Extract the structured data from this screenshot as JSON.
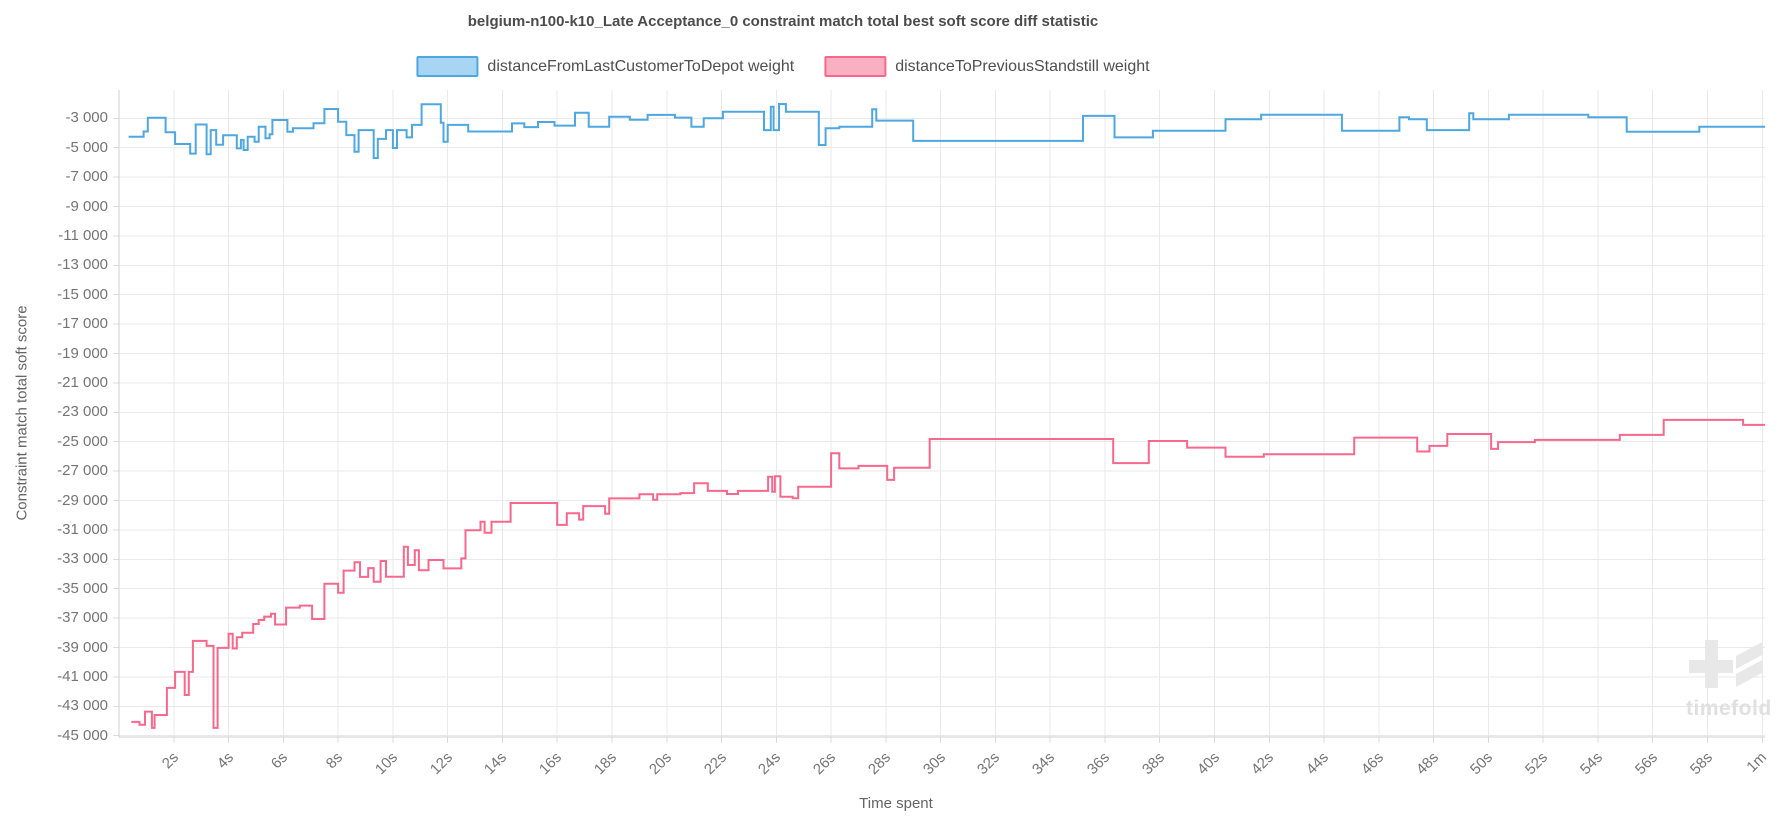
{
  "title": "belgium-n100-k10_Late Acceptance_0 constraint match total best soft score diff statistic",
  "watermark": {
    "text": "timefold"
  },
  "chart_data": {
    "type": "line",
    "line_style": "step-after",
    "title": "belgium-n100-k10_Late Acceptance_0 constraint match total best soft score diff statistic",
    "xlabel": "Time spent",
    "ylabel": "Constraint match total soft score",
    "grid": true,
    "legend_position": "top",
    "xlim": [
      0,
      60.1
    ],
    "ylim": [
      -45090,
      -1075
    ],
    "colors": {
      "grid": "#e9e9e9",
      "axis": "#cfcfcf",
      "tick_stub": "#dcdcdc",
      "blue_line": "#4da7e0",
      "blue_fill": "#a9d5f5",
      "pink_line": "#f7688c",
      "pink_fill": "#f9b0c3",
      "text": "#757575",
      "watermark": "#e8e8e8"
    },
    "x_ticks": [
      {
        "v": 2,
        "label": "2s"
      },
      {
        "v": 4,
        "label": "4s"
      },
      {
        "v": 6,
        "label": "6s"
      },
      {
        "v": 8,
        "label": "8s"
      },
      {
        "v": 10,
        "label": "10s"
      },
      {
        "v": 12,
        "label": "12s"
      },
      {
        "v": 14,
        "label": "14s"
      },
      {
        "v": 16,
        "label": "16s"
      },
      {
        "v": 18,
        "label": "18s"
      },
      {
        "v": 20,
        "label": "20s"
      },
      {
        "v": 22,
        "label": "22s"
      },
      {
        "v": 24,
        "label": "24s"
      },
      {
        "v": 26,
        "label": "26s"
      },
      {
        "v": 28,
        "label": "28s"
      },
      {
        "v": 30,
        "label": "30s"
      },
      {
        "v": 32,
        "label": "32s"
      },
      {
        "v": 34,
        "label": "34s"
      },
      {
        "v": 36,
        "label": "36s"
      },
      {
        "v": 38,
        "label": "38s"
      },
      {
        "v": 40,
        "label": "40s"
      },
      {
        "v": 42,
        "label": "42s"
      },
      {
        "v": 44,
        "label": "44s"
      },
      {
        "v": 46,
        "label": "46s"
      },
      {
        "v": 48,
        "label": "48s"
      },
      {
        "v": 50,
        "label": "50s"
      },
      {
        "v": 52,
        "label": "52s"
      },
      {
        "v": 54,
        "label": "54s"
      },
      {
        "v": 56,
        "label": "56s"
      },
      {
        "v": 58,
        "label": "58s"
      },
      {
        "v": 60,
        "label": "1m"
      }
    ],
    "y_ticks": [
      {
        "v": -3000,
        "label": "-3 000"
      },
      {
        "v": -5000,
        "label": "-5 000"
      },
      {
        "v": -7000,
        "label": "-7 000"
      },
      {
        "v": -9000,
        "label": "-9 000"
      },
      {
        "v": -11000,
        "label": "-11 000"
      },
      {
        "v": -13000,
        "label": "-13 000"
      },
      {
        "v": -15000,
        "label": "-15 000"
      },
      {
        "v": -17000,
        "label": "-17 000"
      },
      {
        "v": -19000,
        "label": "-19 000"
      },
      {
        "v": -21000,
        "label": "-21 000"
      },
      {
        "v": -23000,
        "label": "-23 000"
      },
      {
        "v": -25000,
        "label": "-25 000"
      },
      {
        "v": -27000,
        "label": "-27 000"
      },
      {
        "v": -29000,
        "label": "-29 000"
      },
      {
        "v": -31000,
        "label": "-31 000"
      },
      {
        "v": -33000,
        "label": "-33 000"
      },
      {
        "v": -35000,
        "label": "-35 000"
      },
      {
        "v": -37000,
        "label": "-37 000"
      },
      {
        "v": -39000,
        "label": "-39 000"
      },
      {
        "v": -41000,
        "label": "-41 000"
      },
      {
        "v": -43000,
        "label": "-43 000"
      },
      {
        "v": -45000,
        "label": "-45 000"
      }
    ],
    "series": [
      {
        "name": "distanceFromLastCustomerToDepot weight",
        "color": "#4da7e0",
        "fill": "#a9d5f5",
        "points": [
          [
            0.35,
            -4250
          ],
          [
            0.9,
            -3900
          ],
          [
            1.05,
            -2960
          ],
          [
            1.7,
            -3950
          ],
          [
            2.05,
            -4750
          ],
          [
            2.6,
            -5400
          ],
          [
            2.8,
            -3420
          ],
          [
            3.2,
            -5450
          ],
          [
            3.35,
            -3800
          ],
          [
            3.55,
            -4800
          ],
          [
            3.8,
            -4150
          ],
          [
            4.3,
            -5050
          ],
          [
            4.45,
            -4470
          ],
          [
            4.55,
            -5160
          ],
          [
            4.7,
            -4250
          ],
          [
            4.95,
            -4590
          ],
          [
            5.1,
            -3570
          ],
          [
            5.35,
            -4360
          ],
          [
            5.5,
            -4090
          ],
          [
            5.6,
            -3115
          ],
          [
            6.15,
            -3910
          ],
          [
            6.35,
            -3680
          ],
          [
            7.1,
            -3340
          ],
          [
            7.5,
            -2365
          ],
          [
            8.0,
            -3230
          ],
          [
            8.3,
            -4140
          ],
          [
            8.6,
            -5270
          ],
          [
            8.75,
            -3800
          ],
          [
            9.3,
            -5700
          ],
          [
            9.45,
            -4400
          ],
          [
            9.75,
            -3800
          ],
          [
            10.0,
            -5020
          ],
          [
            10.15,
            -3800
          ],
          [
            10.5,
            -4300
          ],
          [
            10.7,
            -3450
          ],
          [
            11.05,
            -2050
          ],
          [
            11.75,
            -3300
          ],
          [
            11.85,
            -4590
          ],
          [
            12.0,
            -3450
          ],
          [
            12.75,
            -3900
          ],
          [
            14.35,
            -3350
          ],
          [
            14.8,
            -3600
          ],
          [
            15.3,
            -3250
          ],
          [
            15.9,
            -3500
          ],
          [
            16.65,
            -2620
          ],
          [
            17.15,
            -3570
          ],
          [
            17.9,
            -2890
          ],
          [
            18.65,
            -3100
          ],
          [
            19.3,
            -2770
          ],
          [
            20.3,
            -2950
          ],
          [
            20.9,
            -3570
          ],
          [
            21.35,
            -3000
          ],
          [
            22.05,
            -2550
          ],
          [
            23.55,
            -3800
          ],
          [
            23.8,
            -2210
          ],
          [
            23.9,
            -3800
          ],
          [
            24.1,
            -2030
          ],
          [
            24.35,
            -2550
          ],
          [
            25.55,
            -4820
          ],
          [
            25.8,
            -3680
          ],
          [
            26.3,
            -3570
          ],
          [
            27.5,
            -2390
          ],
          [
            27.65,
            -3160
          ],
          [
            29.0,
            -4540
          ],
          [
            35.2,
            -2840
          ],
          [
            36.35,
            -4300
          ],
          [
            37.75,
            -3850
          ],
          [
            40.4,
            -3070
          ],
          [
            41.7,
            -2760
          ],
          [
            44.65,
            -3850
          ],
          [
            46.75,
            -2930
          ],
          [
            47.1,
            -3070
          ],
          [
            47.75,
            -3800
          ],
          [
            49.3,
            -2660
          ],
          [
            49.45,
            -3070
          ],
          [
            50.75,
            -2760
          ],
          [
            53.65,
            -2930
          ],
          [
            55.05,
            -3920
          ],
          [
            57.7,
            -3570
          ]
        ]
      },
      {
        "name": "distanceToPreviousStandstill weight",
        "color": "#f7688c",
        "fill": "#f9b0c3",
        "points": [
          [
            0.45,
            -44060
          ],
          [
            0.75,
            -44250
          ],
          [
            0.95,
            -43360
          ],
          [
            1.2,
            -44470
          ],
          [
            1.3,
            -43590
          ],
          [
            1.75,
            -41750
          ],
          [
            2.05,
            -40660
          ],
          [
            2.4,
            -42230
          ],
          [
            2.55,
            -40660
          ],
          [
            2.7,
            -38550
          ],
          [
            3.2,
            -38890
          ],
          [
            3.45,
            -44470
          ],
          [
            3.6,
            -39030
          ],
          [
            4.0,
            -38070
          ],
          [
            4.15,
            -39070
          ],
          [
            4.3,
            -38300
          ],
          [
            4.5,
            -38000
          ],
          [
            4.9,
            -37400
          ],
          [
            5.1,
            -37130
          ],
          [
            5.3,
            -36900
          ],
          [
            5.55,
            -36700
          ],
          [
            5.7,
            -37440
          ],
          [
            6.1,
            -36290
          ],
          [
            6.6,
            -36150
          ],
          [
            7.05,
            -37060
          ],
          [
            7.5,
            -34670
          ],
          [
            8.0,
            -35270
          ],
          [
            8.2,
            -33770
          ],
          [
            8.6,
            -33200
          ],
          [
            8.8,
            -34200
          ],
          [
            9.1,
            -33600
          ],
          [
            9.3,
            -34530
          ],
          [
            9.55,
            -33120
          ],
          [
            9.75,
            -34190
          ],
          [
            10.4,
            -32150
          ],
          [
            10.55,
            -33390
          ],
          [
            10.8,
            -32380
          ],
          [
            10.95,
            -33740
          ],
          [
            11.3,
            -33050
          ],
          [
            11.85,
            -33620
          ],
          [
            12.5,
            -32940
          ],
          [
            12.65,
            -31020
          ],
          [
            13.2,
            -30450
          ],
          [
            13.35,
            -31200
          ],
          [
            13.6,
            -30450
          ],
          [
            14.3,
            -29170
          ],
          [
            16.0,
            -30660
          ],
          [
            16.35,
            -29870
          ],
          [
            16.8,
            -30300
          ],
          [
            16.95,
            -29380
          ],
          [
            17.75,
            -29900
          ],
          [
            17.9,
            -28860
          ],
          [
            19.0,
            -28580
          ],
          [
            19.5,
            -28950
          ],
          [
            19.65,
            -28580
          ],
          [
            20.5,
            -28500
          ],
          [
            21.0,
            -27830
          ],
          [
            21.5,
            -28350
          ],
          [
            22.2,
            -28560
          ],
          [
            22.6,
            -28350
          ],
          [
            23.7,
            -27380
          ],
          [
            23.85,
            -28400
          ],
          [
            23.95,
            -27350
          ],
          [
            24.15,
            -28740
          ],
          [
            24.6,
            -28850
          ],
          [
            24.8,
            -28060
          ],
          [
            26.0,
            -25790
          ],
          [
            26.3,
            -26820
          ],
          [
            27.0,
            -26650
          ],
          [
            28.05,
            -27600
          ],
          [
            28.3,
            -26770
          ],
          [
            29.6,
            -24820
          ],
          [
            36.3,
            -26460
          ],
          [
            37.6,
            -24950
          ],
          [
            39.0,
            -25400
          ],
          [
            40.4,
            -26020
          ],
          [
            41.8,
            -25860
          ],
          [
            45.1,
            -24720
          ],
          [
            47.4,
            -25670
          ],
          [
            47.85,
            -25290
          ],
          [
            48.5,
            -24480
          ],
          [
            50.1,
            -25490
          ],
          [
            50.35,
            -25030
          ],
          [
            51.7,
            -24880
          ],
          [
            54.8,
            -24540
          ],
          [
            56.4,
            -23520
          ],
          [
            59.3,
            -23860
          ]
        ]
      }
    ]
  }
}
